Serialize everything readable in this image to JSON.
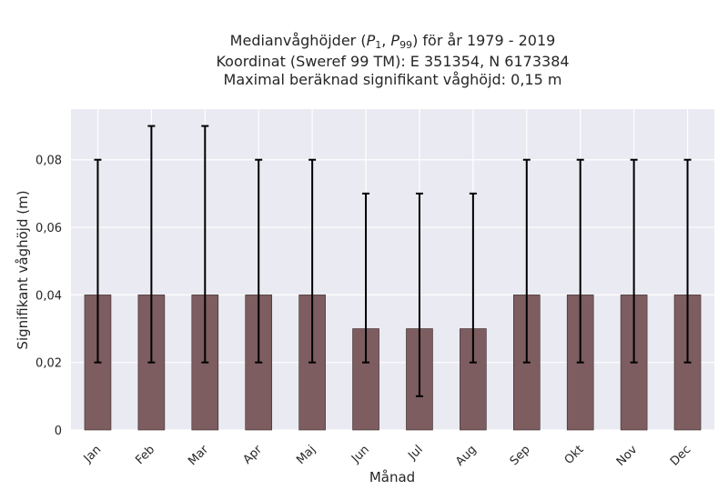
{
  "chart_data": {
    "type": "bar",
    "title_line1_prefix": "Medianvåghöjder (",
    "title_line1_p1": "P",
    "title_line1_p1_sub": "1",
    "title_line1_sep": ", ",
    "title_line1_p2": "P",
    "title_line1_p2_sub": "99",
    "title_line1_suffix": ") för år 1979 - 2019",
    "title_line2": "Koordinat (Sweref 99 TM): E 351354, N 6173384",
    "title_line3": "Maximal beräknad signifikant våghöjd: 0,15 m",
    "xlabel": "Månad",
    "ylabel": "Signifikant våghöjd (m)",
    "ylim": [
      0,
      0.095
    ],
    "yticks": [
      0,
      0.02,
      0.04,
      0.06,
      0.08
    ],
    "ytick_labels": [
      "0",
      "0,02",
      "0,04",
      "0,06",
      "0,08"
    ],
    "categories": [
      "Jan",
      "Feb",
      "Mar",
      "Apr",
      "Maj",
      "Jun",
      "Jul",
      "Aug",
      "Sep",
      "Okt",
      "Nov",
      "Dec"
    ],
    "values": [
      0.04,
      0.04,
      0.04,
      0.04,
      0.04,
      0.03,
      0.03,
      0.03,
      0.04,
      0.04,
      0.04,
      0.04
    ],
    "p1": [
      0.02,
      0.02,
      0.02,
      0.02,
      0.02,
      0.02,
      0.01,
      0.02,
      0.02,
      0.02,
      0.02,
      0.02
    ],
    "p99": [
      0.08,
      0.09,
      0.09,
      0.08,
      0.08,
      0.07,
      0.07,
      0.07,
      0.08,
      0.08,
      0.08,
      0.08
    ],
    "bar_color": "#7d5d5f",
    "plot_bg": "#eaeaf2",
    "grid": true,
    "legend": "none"
  }
}
